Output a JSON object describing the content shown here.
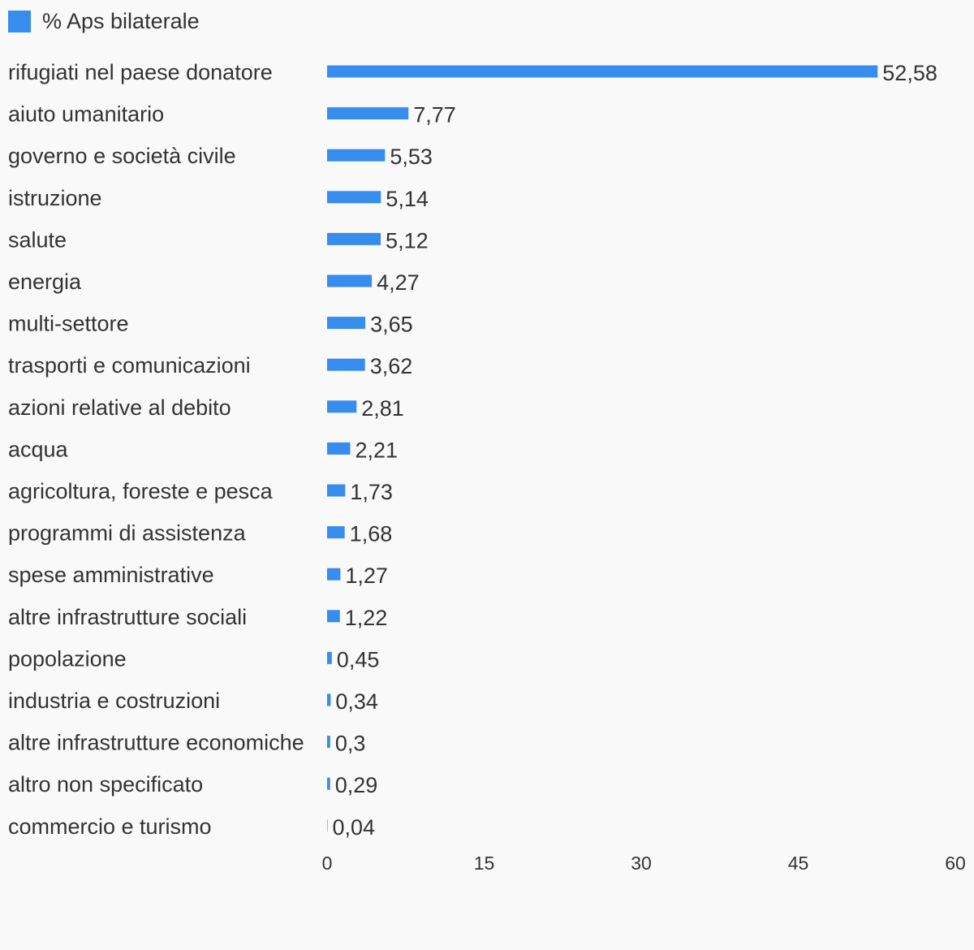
{
  "chart_data": {
    "type": "bar",
    "orientation": "horizontal",
    "legend": {
      "placement": "top-left",
      "entries": [
        "% Aps bilaterale"
      ]
    },
    "series": [
      {
        "name": "% Aps bilaterale",
        "color": "#368ded",
        "values": [
          52.58,
          7.77,
          5.53,
          5.14,
          5.12,
          4.27,
          3.65,
          3.62,
          2.81,
          2.21,
          1.73,
          1.68,
          1.27,
          1.22,
          0.45,
          0.34,
          0.3,
          0.29,
          0.04
        ],
        "value_labels": [
          "52,58",
          "7,77",
          "5,53",
          "5,14",
          "5,12",
          "4,27",
          "3,65",
          "3,62",
          "2,81",
          "2,21",
          "1,73",
          "1,68",
          "1,27",
          "1,22",
          "0,45",
          "0,34",
          "0,3",
          "0,29",
          "0,04"
        ]
      }
    ],
    "categories": [
      "rifugiati nel paese donatore",
      "aiuto umanitario",
      "governo e società civile",
      "istruzione",
      "salute",
      "energia",
      "multi-settore",
      "trasporti e comunicazioni",
      "azioni relative al debito",
      "acqua",
      "agricoltura, foreste e pesca",
      "programmi di assistenza",
      "spese amministrative",
      "altre infrastrutture sociali",
      "popolazione",
      "industria e costruzioni",
      "altre infrastrutture economiche",
      "altro non specificato",
      "commercio e turismo"
    ],
    "xlim": [
      0,
      60
    ],
    "xticks": [
      0,
      15,
      30,
      45,
      60
    ],
    "xtick_labels": [
      "0",
      "15",
      "30",
      "45",
      "60"
    ],
    "grid": false,
    "title": "",
    "xlabel": "",
    "ylabel": ""
  }
}
